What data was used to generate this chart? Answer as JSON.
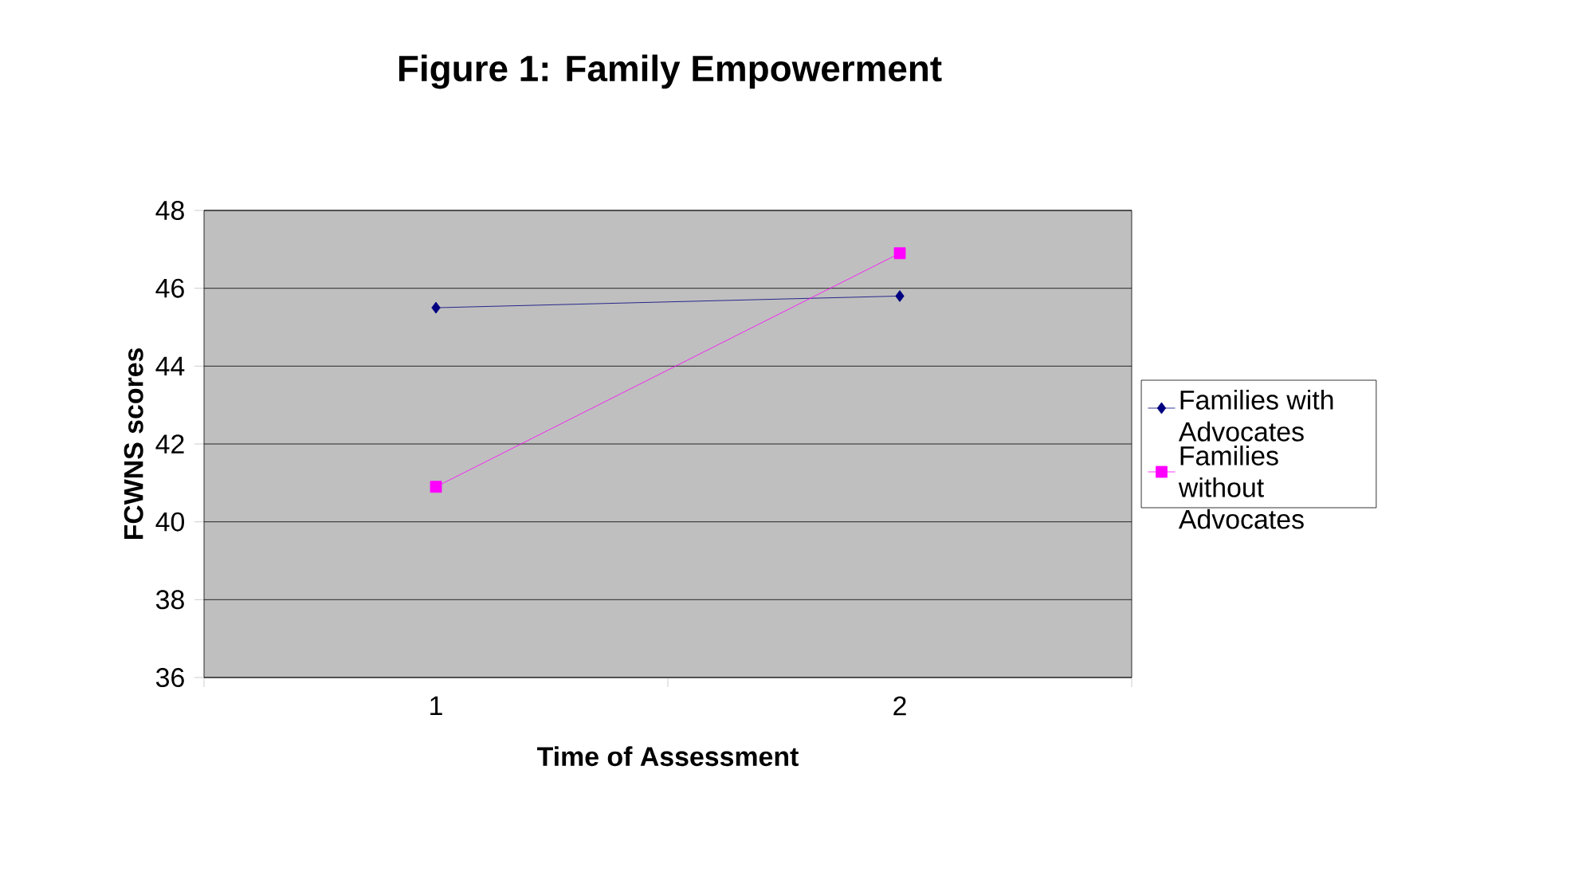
{
  "chart_data": {
    "type": "line",
    "title": "Figure 1: Family Empowerment",
    "xlabel": "Time of Assessment",
    "ylabel": "FCWNS scores",
    "categories": [
      "1",
      "2"
    ],
    "series": [
      {
        "name": "Families with Advocates",
        "color": "#000080",
        "marker": "diamond",
        "values": [
          45.5,
          45.8
        ]
      },
      {
        "name": "Families without Advocates",
        "color": "#ff00ff",
        "marker": "square",
        "values": [
          40.9,
          46.9
        ]
      }
    ],
    "ylim": [
      36,
      48
    ],
    "yticks": [
      36,
      38,
      40,
      42,
      44,
      46,
      48
    ],
    "grid": "y",
    "legend": "right",
    "line_style": "solid"
  }
}
